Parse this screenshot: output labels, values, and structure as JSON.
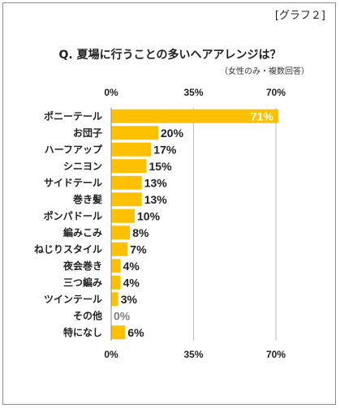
{
  "tag": "[グラフ２]",
  "chart_data": {
    "type": "bar",
    "orientation": "horizontal",
    "title": "Q. 夏場に行うことの多いヘアアレンジは？",
    "subtitle": "（女性のみ・複数回答）",
    "categories": [
      "ポニーテール",
      "お団子",
      "ハーフアップ",
      "シニヨン",
      "サイドテール",
      "巻き髪",
      "ポンパドール",
      "編みこみ",
      "ねじりスタイル",
      "夜会巻き",
      "三つ編み",
      "ツインテール",
      "その他",
      "特になし"
    ],
    "values": [
      71,
      20,
      17,
      15,
      13,
      13,
      10,
      8,
      7,
      4,
      4,
      3,
      0,
      6
    ],
    "value_labels": [
      "71%",
      "20%",
      "17%",
      "15%",
      "13%",
      "13%",
      "10%",
      "8%",
      "7%",
      "4%",
      "4%",
      "3%",
      "0%",
      "6%"
    ],
    "ticks": [
      "0%",
      "35%",
      "70%"
    ],
    "tick_values": [
      0,
      35,
      70
    ],
    "xlim": [
      0,
      70
    ],
    "grid": true,
    "bar_color": "#ffc000",
    "gridline_color": "#bfbfbf",
    "label_inside_color": "#ffffff",
    "label_color": "#222222",
    "zero_label_color": "#7f7f7f"
  }
}
